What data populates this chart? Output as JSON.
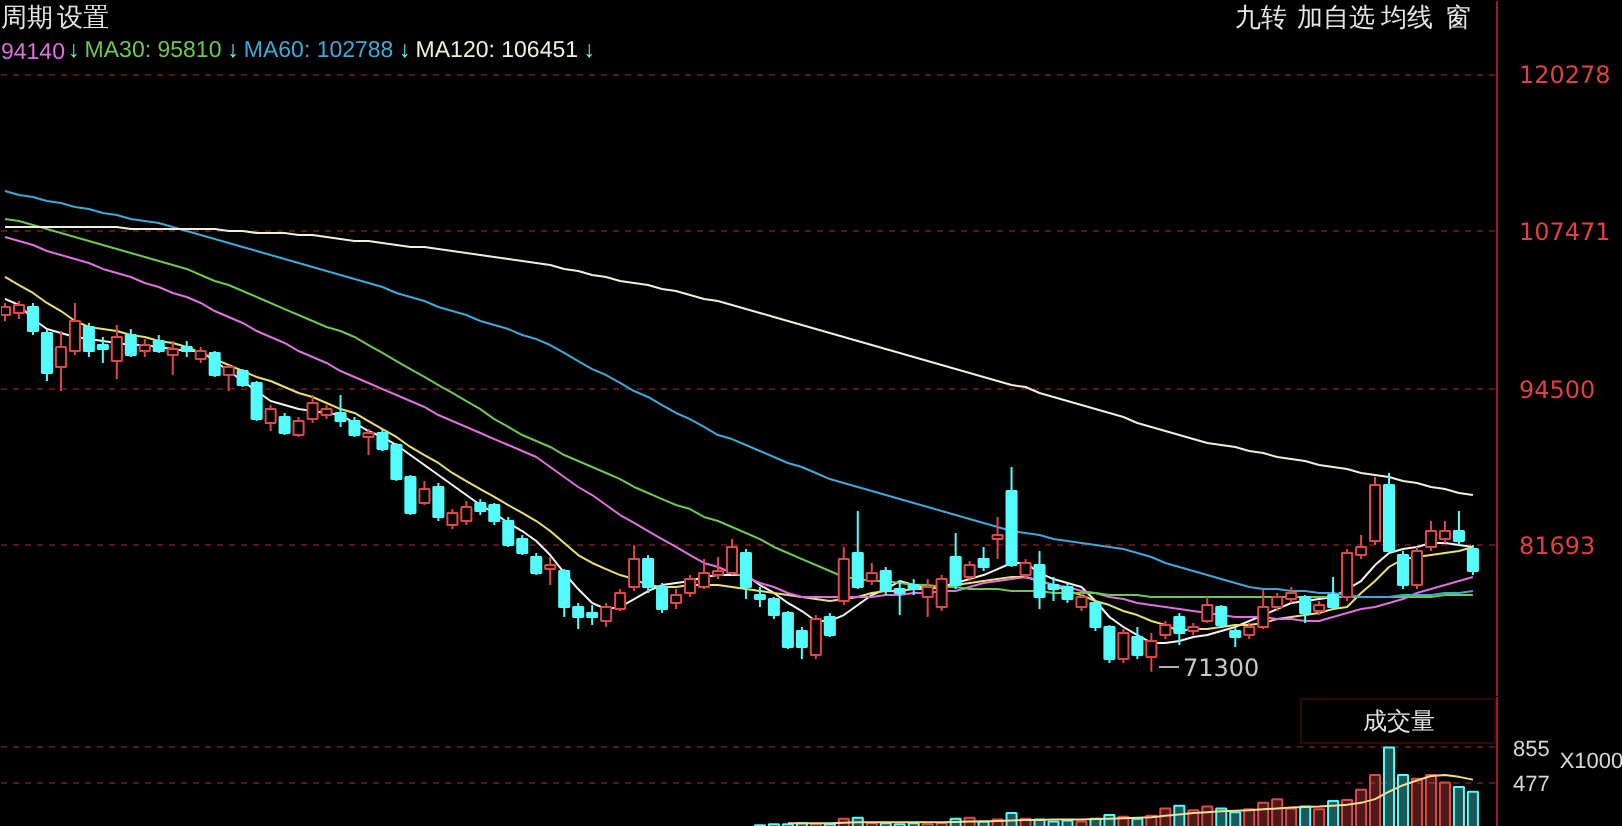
{
  "chart_data": [
    {
      "type": "candlestick",
      "categories": [
        null,
        null,
        null,
        null,
        null,
        null,
        null,
        null,
        null,
        null,
        null,
        null,
        null,
        null,
        null,
        null,
        null,
        null,
        null,
        null,
        null,
        null,
        null,
        null,
        null,
        null,
        null,
        null,
        null,
        null,
        null,
        null,
        null,
        null,
        null,
        null,
        null,
        null,
        null,
        null,
        null,
        null,
        null,
        null,
        null,
        null,
        null,
        null,
        null,
        null,
        null,
        null,
        null,
        null,
        null,
        null,
        null,
        null,
        null,
        null,
        null,
        null,
        null,
        null,
        null,
        null,
        null,
        null,
        null,
        null,
        null,
        null,
        null,
        null,
        null,
        null,
        null,
        null,
        null,
        null,
        null,
        null,
        null,
        null,
        null,
        null,
        null,
        null,
        null,
        null,
        null,
        null,
        null,
        null,
        null,
        null,
        null,
        null,
        null,
        null,
        null,
        null,
        null,
        null,
        null,
        null
      ],
      "ohlc": [
        [
          100550,
          101540,
          100060,
          101210
        ],
        [
          100720,
          101700,
          100220,
          101370
        ],
        [
          101210,
          101540,
          98910,
          99240
        ],
        [
          99080,
          99400,
          95140,
          95800
        ],
        [
          96290,
          99240,
          94320,
          97930
        ],
        [
          97600,
          101540,
          97270,
          100060
        ],
        [
          99570,
          99900,
          97110,
          97600
        ],
        [
          98090,
          98750,
          96620,
          97760
        ],
        [
          96780,
          99730,
          95300,
          98750
        ],
        [
          98910,
          99400,
          97110,
          97270
        ],
        [
          97600,
          98580,
          97110,
          98090
        ],
        [
          98420,
          98910,
          97440,
          97600
        ],
        [
          97270,
          98420,
          95630,
          97760
        ],
        [
          97930,
          98420,
          97110,
          97600
        ],
        [
          96940,
          97930,
          96620,
          97600
        ],
        [
          97440,
          97600,
          95470,
          95630
        ],
        [
          95630,
          96450,
          94320,
          96290
        ],
        [
          95960,
          96120,
          94650,
          94810
        ],
        [
          94980,
          95140,
          91860,
          92020
        ],
        [
          91700,
          93170,
          91040,
          92840
        ],
        [
          92190,
          92520,
          90710,
          90880
        ],
        [
          90710,
          92190,
          90550,
          91860
        ],
        [
          92020,
          93990,
          91700,
          93340
        ],
        [
          92350,
          93170,
          92020,
          92840
        ],
        [
          92520,
          93990,
          91370,
          91860
        ],
        [
          91860,
          92190,
          90550,
          90710
        ],
        [
          90550,
          91200,
          89070,
          90880
        ],
        [
          90880,
          91200,
          89400,
          89560
        ],
        [
          89890,
          90060,
          86940,
          87100
        ],
        [
          87270,
          87430,
          84150,
          84320
        ],
        [
          85140,
          86940,
          84970,
          86280
        ],
        [
          86450,
          86780,
          83660,
          83990
        ],
        [
          83330,
          84640,
          83000,
          84320
        ],
        [
          83660,
          85300,
          83330,
          84810
        ],
        [
          85140,
          85460,
          84150,
          84480
        ],
        [
          84970,
          85140,
          83330,
          83660
        ],
        [
          83660,
          83990,
          81530,
          81690
        ],
        [
          82180,
          82510,
          80870,
          81040
        ],
        [
          80710,
          81040,
          79230,
          79400
        ],
        [
          79720,
          80710,
          78410,
          80050
        ],
        [
          79560,
          79720,
          75790,
          76610
        ],
        [
          76610,
          76940,
          74800,
          75790
        ],
        [
          76120,
          76770,
          75130,
          75790
        ],
        [
          75460,
          76940,
          74970,
          76610
        ],
        [
          76440,
          78080,
          76280,
          77760
        ],
        [
          78250,
          81690,
          77920,
          80540
        ],
        [
          80540,
          80870,
          77760,
          78250
        ],
        [
          78250,
          78580,
          76120,
          76440
        ],
        [
          76940,
          78080,
          76440,
          77590
        ],
        [
          77760,
          79230,
          77430,
          78900
        ],
        [
          78250,
          80540,
          78080,
          79400
        ],
        [
          79230,
          80710,
          78900,
          79560
        ],
        [
          79400,
          82180,
          79230,
          81530
        ],
        [
          81040,
          81360,
          77260,
          78250
        ],
        [
          77590,
          78250,
          76610,
          77260
        ],
        [
          77260,
          77430,
          75620,
          75950
        ],
        [
          76120,
          76280,
          73160,
          73330
        ],
        [
          74640,
          74970,
          72340,
          73330
        ],
        [
          72670,
          75950,
          72340,
          75620
        ],
        [
          75790,
          76120,
          74150,
          74310
        ],
        [
          77100,
          81530,
          76770,
          80540
        ],
        [
          81040,
          84480,
          78080,
          78250
        ],
        [
          78740,
          80220,
          78410,
          79400
        ],
        [
          79560,
          79890,
          77590,
          77920
        ],
        [
          78080,
          78740,
          75950,
          77760
        ],
        [
          78410,
          78900,
          77590,
          78080
        ],
        [
          77430,
          78900,
          75790,
          78250
        ],
        [
          76610,
          79230,
          76280,
          78900
        ],
        [
          80710,
          82680,
          78080,
          78410
        ],
        [
          79070,
          80380,
          78740,
          80050
        ],
        [
          80540,
          81530,
          79560,
          79890
        ],
        [
          82180,
          83990,
          80540,
          82510
        ],
        [
          86120,
          88090,
          79890,
          80050
        ],
        [
          79230,
          80540,
          78900,
          80220
        ],
        [
          80050,
          81200,
          76440,
          77430
        ],
        [
          78410,
          79070,
          77100,
          78080
        ],
        [
          78250,
          78580,
          76940,
          77260
        ],
        [
          76610,
          77760,
          76280,
          77430
        ],
        [
          76940,
          77100,
          74640,
          74970
        ],
        [
          74970,
          75130,
          72020,
          72340
        ],
        [
          72340,
          74800,
          72020,
          74480
        ],
        [
          74150,
          74970,
          72340,
          72670
        ],
        [
          72510,
          74480,
          71300,
          73820
        ],
        [
          74310,
          75460,
          73980,
          75130
        ],
        [
          75790,
          76120,
          73490,
          74480
        ],
        [
          74640,
          75300,
          74310,
          74970
        ],
        [
          75460,
          77430,
          75300,
          76770
        ],
        [
          76610,
          76770,
          74970,
          75130
        ],
        [
          74640,
          74970,
          73330,
          74150
        ],
        [
          74310,
          75300,
          73980,
          74970
        ],
        [
          74970,
          78080,
          74800,
          76610
        ],
        [
          76610,
          77760,
          76280,
          77430
        ],
        [
          77260,
          78250,
          76940,
          77760
        ],
        [
          77430,
          77590,
          75300,
          76120
        ],
        [
          76280,
          77100,
          75950,
          76770
        ],
        [
          77590,
          79070,
          76440,
          76610
        ],
        [
          77430,
          81360,
          77100,
          81040
        ],
        [
          80870,
          82510,
          80540,
          81530
        ],
        [
          82020,
          87270,
          81690,
          86610
        ],
        [
          86610,
          87600,
          81040,
          81200
        ],
        [
          80870,
          81200,
          78080,
          78410
        ],
        [
          78410,
          81530,
          78080,
          81200
        ],
        [
          81530,
          83660,
          81200,
          82840
        ],
        [
          82180,
          83660,
          81860,
          82840
        ],
        [
          82840,
          84480,
          81690,
          82020
        ],
        [
          81360,
          81690,
          79230,
          79560
        ]
      ],
      "colors": [
        "#e04848",
        "#e04848",
        "#54fcfc",
        "#54fcfc",
        "#e04848",
        "#e04848",
        "#54fcfc",
        "#54fcfc",
        "#e04848",
        "#54fcfc",
        "#e04848",
        "#54fcfc",
        "#e04848",
        "#54fcfc",
        "#e04848",
        "#54fcfc",
        "#e04848",
        "#54fcfc",
        "#54fcfc",
        "#e04848",
        "#54fcfc",
        "#e04848",
        "#e04848",
        "#e04848",
        "#54fcfc",
        "#54fcfc",
        "#e04848",
        "#54fcfc",
        "#54fcfc",
        "#54fcfc",
        "#e04848",
        "#54fcfc",
        "#e04848",
        "#e04848",
        "#54fcfc",
        "#54fcfc",
        "#54fcfc",
        "#54fcfc",
        "#54fcfc",
        "#e04848",
        "#54fcfc",
        "#54fcfc",
        "#54fcfc",
        "#e04848",
        "#e04848",
        "#e04848",
        "#54fcfc",
        "#54fcfc",
        "#e04848",
        "#e04848",
        "#e04848",
        "#e04848",
        "#e04848",
        "#54fcfc",
        "#54fcfc",
        "#54fcfc",
        "#54fcfc",
        "#54fcfc",
        "#e04848",
        "#54fcfc",
        "#e04848",
        "#54fcfc",
        "#e04848",
        "#54fcfc",
        "#54fcfc",
        "#54fcfc",
        "#e04848",
        "#e04848",
        "#54fcfc",
        "#e04848",
        "#54fcfc",
        "#e04848",
        "#54fcfc",
        "#e04848",
        "#54fcfc",
        "#54fcfc",
        "#54fcfc",
        "#e04848",
        "#54fcfc",
        "#54fcfc",
        "#e04848",
        "#54fcfc",
        "#e04848",
        "#e04848",
        "#54fcfc",
        "#e04848",
        "#e04848",
        "#54fcfc",
        "#54fcfc",
        "#e04848",
        "#e04848",
        "#e04848",
        "#e04848",
        "#54fcfc",
        "#e04848",
        "#54fcfc",
        "#e04848",
        "#e04848",
        "#e04848",
        "#54fcfc",
        "#54fcfc",
        "#e04848",
        "#e04848",
        "#e04848",
        "#54fcfc",
        "#54fcfc"
      ],
      "series": [
        {
          "type": "line",
          "color": "#f4f4f4",
          "values": [
            101870,
            101370,
            100220,
            99400,
            99080,
            98750,
            98580,
            98420,
            98260,
            98090,
            98090,
            97930,
            97760,
            97600,
            97600,
            96780,
            95960,
            95140,
            94320,
            93500,
            93170,
            92840,
            92680,
            92520,
            92350,
            91700,
            91040,
            90550,
            89890,
            89070,
            88250,
            87430,
            86610,
            85790,
            84970,
            84320,
            83500,
            82840,
            82020,
            80870,
            79400,
            78080,
            76940,
            76440,
            76610,
            77260,
            77920,
            78410,
            78580,
            78740,
            79070,
            79230,
            79230,
            79230,
            78410,
            77760,
            76940,
            76280,
            75460,
            75460,
            75950,
            76770,
            77590,
            78080,
            78740,
            78410,
            78080,
            78250,
            78580,
            78900,
            79230,
            79720,
            80220,
            80220,
            79400,
            78900,
            78580,
            78250,
            77100,
            75790,
            74970,
            74310,
            73660,
            73660,
            73820,
            74150,
            74310,
            74640,
            74970,
            75460,
            75950,
            76440,
            76940,
            77100,
            77260,
            77430,
            78080,
            78740,
            80050,
            81040,
            81360,
            81530,
            81860,
            81860,
            81690,
            81530
          ]
        },
        {
          "type": "line",
          "color": "#e8e070",
          "values": [
            103670,
            103010,
            102360,
            101540,
            100880,
            100060,
            99570,
            99400,
            99240,
            98910,
            98750,
            98420,
            98260,
            97930,
            97440,
            96940,
            96450,
            95960,
            95470,
            95140,
            94650,
            94160,
            93830,
            93340,
            92840,
            92520,
            91860,
            91200,
            90550,
            89730,
            89070,
            88420,
            87600,
            86940,
            86280,
            85630,
            84970,
            84320,
            83660,
            82840,
            81860,
            80870,
            80220,
            79720,
            79230,
            78900,
            78410,
            78250,
            78250,
            78410,
            78410,
            78410,
            78250,
            78080,
            77920,
            77760,
            77590,
            77430,
            77260,
            77100,
            77260,
            77430,
            77760,
            77920,
            77920,
            78080,
            78080,
            78250,
            78410,
            78580,
            78740,
            78900,
            79070,
            79070,
            78740,
            78410,
            77920,
            77590,
            77100,
            76770,
            76280,
            75950,
            75460,
            75130,
            74640,
            74800,
            74800,
            74970,
            75130,
            75130,
            75300,
            75620,
            75790,
            75950,
            76120,
            76440,
            76610,
            77760,
            78740,
            79890,
            80540,
            80710,
            80870,
            81040,
            81200,
            81530
          ]
        },
        {
          "type": "line",
          "color": "#e070e0",
          "values": [
            106950,
            106620,
            106290,
            105800,
            105470,
            105140,
            104820,
            104330,
            103990,
            103670,
            103180,
            102850,
            102360,
            102030,
            101540,
            100880,
            100390,
            99900,
            99240,
            98750,
            98260,
            97600,
            97110,
            96620,
            95960,
            95470,
            94980,
            94480,
            93990,
            93500,
            93010,
            92350,
            91860,
            91370,
            90880,
            90380,
            89890,
            89400,
            88910,
            88090,
            87270,
            86450,
            85790,
            84970,
            84150,
            83500,
            82840,
            82180,
            81530,
            80870,
            80220,
            79890,
            79400,
            79070,
            78580,
            78250,
            77760,
            77430,
            77430,
            77430,
            77430,
            77430,
            77430,
            77590,
            77590,
            77760,
            77760,
            77920,
            77920,
            78250,
            78580,
            78740,
            78900,
            79070,
            78740,
            78410,
            78250,
            77920,
            77760,
            77430,
            77260,
            76940,
            76770,
            76610,
            76440,
            76280,
            76120,
            75950,
            75790,
            75790,
            75790,
            75620,
            75620,
            75460,
            75460,
            75790,
            76120,
            76440,
            76610,
            76940,
            77260,
            77760,
            78080,
            78410,
            78740,
            79070
          ]
        },
        {
          "type": "line",
          "color": "#6cc850",
          "values": [
            108420,
            108260,
            107930,
            107610,
            107280,
            106950,
            106620,
            106290,
            105970,
            105640,
            105310,
            104980,
            104650,
            104330,
            103830,
            103340,
            103010,
            102520,
            102030,
            101540,
            101040,
            100550,
            100060,
            99570,
            99240,
            98750,
            98090,
            97440,
            96780,
            96120,
            95470,
            94810,
            94160,
            93500,
            92840,
            92020,
            91370,
            90710,
            90220,
            89730,
            89070,
            88580,
            88090,
            87600,
            87100,
            86450,
            85960,
            85460,
            84970,
            84640,
            83990,
            83660,
            83170,
            82680,
            82180,
            81530,
            81040,
            80540,
            80050,
            79560,
            79070,
            78900,
            78740,
            78740,
            78580,
            78410,
            78410,
            78250,
            78250,
            78080,
            78080,
            78080,
            77920,
            77920,
            77920,
            77760,
            77760,
            77760,
            77760,
            77590,
            77590,
            77590,
            77430,
            77430,
            77430,
            77430,
            77430,
            77430,
            77430,
            77430,
            77430,
            77430,
            77430,
            77430,
            77430,
            77430,
            77430,
            77430,
            77430,
            77430,
            77430,
            77430,
            77430,
            77590,
            77590,
            77590
          ]
        },
        {
          "type": "line",
          "color": "#40a8d8",
          "values": [
            110720,
            110390,
            110230,
            109900,
            109740,
            109410,
            109240,
            108920,
            108750,
            108420,
            108260,
            108100,
            107770,
            107440,
            107110,
            106790,
            106460,
            106130,
            105800,
            105470,
            105140,
            104820,
            104490,
            104160,
            103830,
            103500,
            103180,
            102850,
            102360,
            102030,
            101700,
            101210,
            100880,
            100550,
            100060,
            99730,
            99400,
            98910,
            98580,
            98090,
            97440,
            96780,
            96120,
            95630,
            94980,
            94320,
            93830,
            93170,
            92520,
            92020,
            91370,
            90710,
            90380,
            89890,
            89400,
            88910,
            88420,
            88090,
            87600,
            87100,
            86780,
            86450,
            86120,
            85790,
            85460,
            85140,
            84810,
            84480,
            84150,
            83820,
            83500,
            83170,
            82840,
            82680,
            82510,
            82180,
            82020,
            81860,
            81690,
            81530,
            81360,
            81040,
            80710,
            80220,
            79890,
            79560,
            79230,
            78900,
            78580,
            78250,
            78080,
            78080,
            77920,
            77920,
            77760,
            77760,
            77590,
            77430,
            77430,
            77430,
            77590,
            77590,
            77590,
            77760,
            77760,
            77920
          ]
        },
        {
          "type": "line",
          "color": "#f0f0d8",
          "values": [
            107770,
            107770,
            107770,
            107770,
            107770,
            107770,
            107770,
            107770,
            107770,
            107610,
            107610,
            107610,
            107610,
            107610,
            107610,
            107610,
            107440,
            107440,
            107280,
            107280,
            107280,
            107110,
            107110,
            106950,
            106790,
            106620,
            106620,
            106460,
            106290,
            106130,
            106130,
            105970,
            105800,
            105640,
            105470,
            105310,
            105140,
            104980,
            104820,
            104650,
            104330,
            104160,
            103830,
            103670,
            103340,
            103180,
            103010,
            102690,
            102520,
            102190,
            101870,
            101700,
            101370,
            101040,
            100720,
            100390,
            100060,
            99730,
            99400,
            99080,
            98750,
            98420,
            98090,
            97760,
            97440,
            97110,
            96780,
            96450,
            96120,
            95800,
            95470,
            95140,
            94810,
            94650,
            94160,
            93830,
            93500,
            93170,
            92840,
            92520,
            92190,
            91700,
            91370,
            91040,
            90710,
            90380,
            90060,
            89890,
            89730,
            89400,
            89240,
            88910,
            88740,
            88580,
            88250,
            88090,
            87920,
            87600,
            87430,
            87270,
            86940,
            86780,
            86450,
            86280,
            85960,
            85790
          ]
        }
      ],
      "ylim": [
        69230,
        126300
      ],
      "yticks": [
        120278,
        107471,
        94500,
        81693
      ],
      "grid": "y",
      "tick_labels": "y",
      "annotations": [
        "94140",
        "↓",
        "MA30: 95810",
        "↓",
        "MA60: 102788",
        "↓",
        "MA120: 106451",
        "↓",
        "周期",
        "设置",
        "九转",
        "加自选",
        "均线",
        "窗",
        "71300"
      ]
    },
    {
      "type": "bar",
      "title": "成交量",
      "ylabel": "X1000",
      "categories": [
        null,
        null,
        null,
        null,
        null,
        null,
        null,
        null,
        null,
        null,
        null,
        null,
        null,
        null,
        null,
        null,
        null,
        null,
        null,
        null,
        null,
        null,
        null,
        null,
        null,
        null,
        null,
        null,
        null,
        null,
        null,
        null,
        null,
        null,
        null,
        null,
        null,
        null,
        null,
        null,
        null,
        null,
        null,
        null,
        null,
        null,
        null,
        null,
        null,
        null,
        null,
        null,
        null,
        null,
        null,
        null,
        null,
        null,
        null,
        null,
        null,
        null,
        null,
        null,
        null,
        null,
        null,
        null,
        null,
        null,
        null,
        null,
        null,
        null,
        null,
        null,
        null,
        null,
        null,
        null,
        null,
        null,
        null,
        null,
        null,
        null,
        null,
        null,
        null,
        null,
        null,
        null,
        null,
        null,
        null,
        null,
        null,
        null,
        null,
        null,
        null,
        null,
        null,
        null,
        null,
        null
      ],
      "series": [
        {
          "colors": [
            "#e04848",
            "#e04848",
            "#54fcfc",
            "#54fcfc",
            "#e04848",
            "#e04848",
            "#54fcfc",
            "#54fcfc",
            "#e04848",
            "#54fcfc",
            "#e04848",
            "#54fcfc",
            "#e04848",
            "#54fcfc",
            "#e04848",
            "#54fcfc",
            "#e04848",
            "#54fcfc",
            "#54fcfc",
            "#e04848",
            "#54fcfc",
            "#e04848",
            "#e04848",
            "#e04848",
            "#54fcfc",
            "#54fcfc",
            "#e04848",
            "#54fcfc",
            "#54fcfc",
            "#54fcfc",
            "#e04848",
            "#54fcfc",
            "#e04848",
            "#e04848",
            "#54fcfc",
            "#54fcfc",
            "#54fcfc",
            "#54fcfc",
            "#54fcfc",
            "#e04848",
            "#54fcfc",
            "#54fcfc",
            "#54fcfc",
            "#e04848",
            "#e04848",
            "#e04848",
            "#54fcfc",
            "#54fcfc",
            "#e04848",
            "#e04848",
            "#e04848",
            "#e04848",
            "#e04848",
            "#54fcfc",
            "#54fcfc",
            "#54fcfc",
            "#54fcfc",
            "#54fcfc",
            "#e04848",
            "#54fcfc",
            "#e04848",
            "#54fcfc",
            "#e04848",
            "#54fcfc",
            "#54fcfc",
            "#54fcfc",
            "#e04848",
            "#e04848",
            "#54fcfc",
            "#e04848",
            "#54fcfc",
            "#e04848",
            "#54fcfc",
            "#e04848",
            "#54fcfc",
            "#54fcfc",
            "#54fcfc",
            "#e04848",
            "#54fcfc",
            "#54fcfc",
            "#e04848",
            "#54fcfc",
            "#e04848",
            "#e04848",
            "#54fcfc",
            "#e04848",
            "#e04848",
            "#54fcfc",
            "#54fcfc",
            "#e04848",
            "#e04848",
            "#e04848",
            "#e04848",
            "#54fcfc",
            "#e04848",
            "#54fcfc",
            "#e04848",
            "#e04848",
            "#e04848",
            "#54fcfc",
            "#54fcfc",
            "#e04848",
            "#e04848",
            "#e04848",
            "#54fcfc",
            "#54fcfc"
          ],
          "values": [
            null,
            null,
            null,
            null,
            null,
            null,
            null,
            null,
            null,
            null,
            null,
            null,
            null,
            null,
            null,
            null,
            null,
            null,
            null,
            null,
            null,
            null,
            null,
            null,
            null,
            null,
            null,
            null,
            null,
            null,
            null,
            null,
            null,
            null,
            null,
            null,
            null,
            null,
            null,
            null,
            null,
            null,
            null,
            null,
            null,
            null,
            null,
            null,
            null,
            null,
            null,
            null,
            null,
            null,
            20,
            30,
            30,
            40,
            30,
            30,
            90,
            100,
            40,
            40,
            30,
            40,
            30,
            40,
            90,
            100,
            60,
            80,
            150,
            90,
            80,
            60,
            70,
            60,
            90,
            130,
            110,
            90,
            120,
            200,
            230,
            180,
            220,
            200,
            160,
            190,
            260,
            300,
            200,
            220,
            190,
            280,
            290,
            400,
            560,
            855,
            560,
            520,
            560,
            480,
            430,
            380
          ]
        },
        {
          "type": "line",
          "color": "#f0e090",
          "values": [
            null,
            null,
            null,
            null,
            null,
            null,
            null,
            null,
            null,
            null,
            null,
            null,
            null,
            null,
            null,
            null,
            null,
            null,
            null,
            null,
            null,
            null,
            null,
            null,
            null,
            null,
            null,
            null,
            null,
            null,
            null,
            null,
            null,
            null,
            null,
            null,
            null,
            null,
            null,
            null,
            null,
            null,
            null,
            null,
            null,
            null,
            null,
            null,
            null,
            null,
            null,
            null,
            null,
            null,
            null,
            null,
            40,
            40,
            40,
            40,
            45,
            50,
            50,
            50,
            50,
            50,
            50,
            50,
            55,
            60,
            60,
            65,
            70,
            75,
            75,
            80,
            80,
            80,
            85,
            90,
            95,
            100,
            105,
            120,
            135,
            150,
            160,
            170,
            175,
            180,
            190,
            200,
            210,
            215,
            220,
            230,
            240,
            260,
            300,
            380,
            450,
            500,
            550,
            560,
            540,
            510
          ]
        }
      ],
      "ylim": [
        0,
        1400
      ],
      "yticks": [
        855,
        477
      ],
      "grid": "y",
      "tick_labels": "y"
    }
  ]
}
